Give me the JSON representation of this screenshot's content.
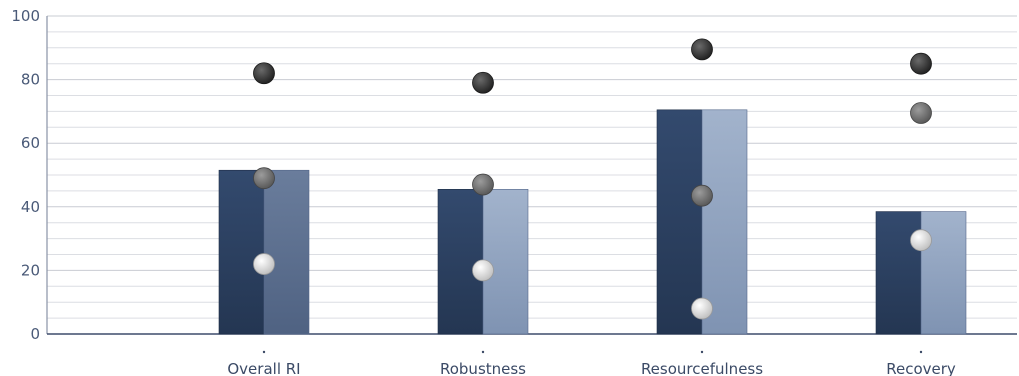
{
  "chart_data": {
    "type": "bar",
    "title": "",
    "xlabel": "",
    "ylabel": "",
    "ylim": [
      0,
      100
    ],
    "yticks": [
      0,
      20,
      40,
      60,
      80,
      100
    ],
    "grid": true,
    "categories": [
      "Overall RI",
      "Robustness",
      "Resourcefulness",
      "Recovery"
    ],
    "series": [
      {
        "kind": "bar",
        "values": [
          51.5,
          45.5,
          70.5,
          38.5
        ],
        "color": "#2e4263"
      },
      {
        "kind": "marker",
        "values": [
          82,
          79,
          89.5,
          85
        ],
        "color": "#3a3a3a"
      },
      {
        "kind": "marker",
        "values": [
          49,
          47,
          43.5,
          69.5
        ],
        "color": "#7a7a7a"
      },
      {
        "kind": "marker",
        "values": [
          22,
          20,
          8,
          29.5
        ],
        "color": "#e8e8e8"
      }
    ],
    "bar_right_half_colors": [
      "#5d6f8c",
      "#93a6c2",
      "#93a6c2",
      "#93a6c2"
    ]
  }
}
